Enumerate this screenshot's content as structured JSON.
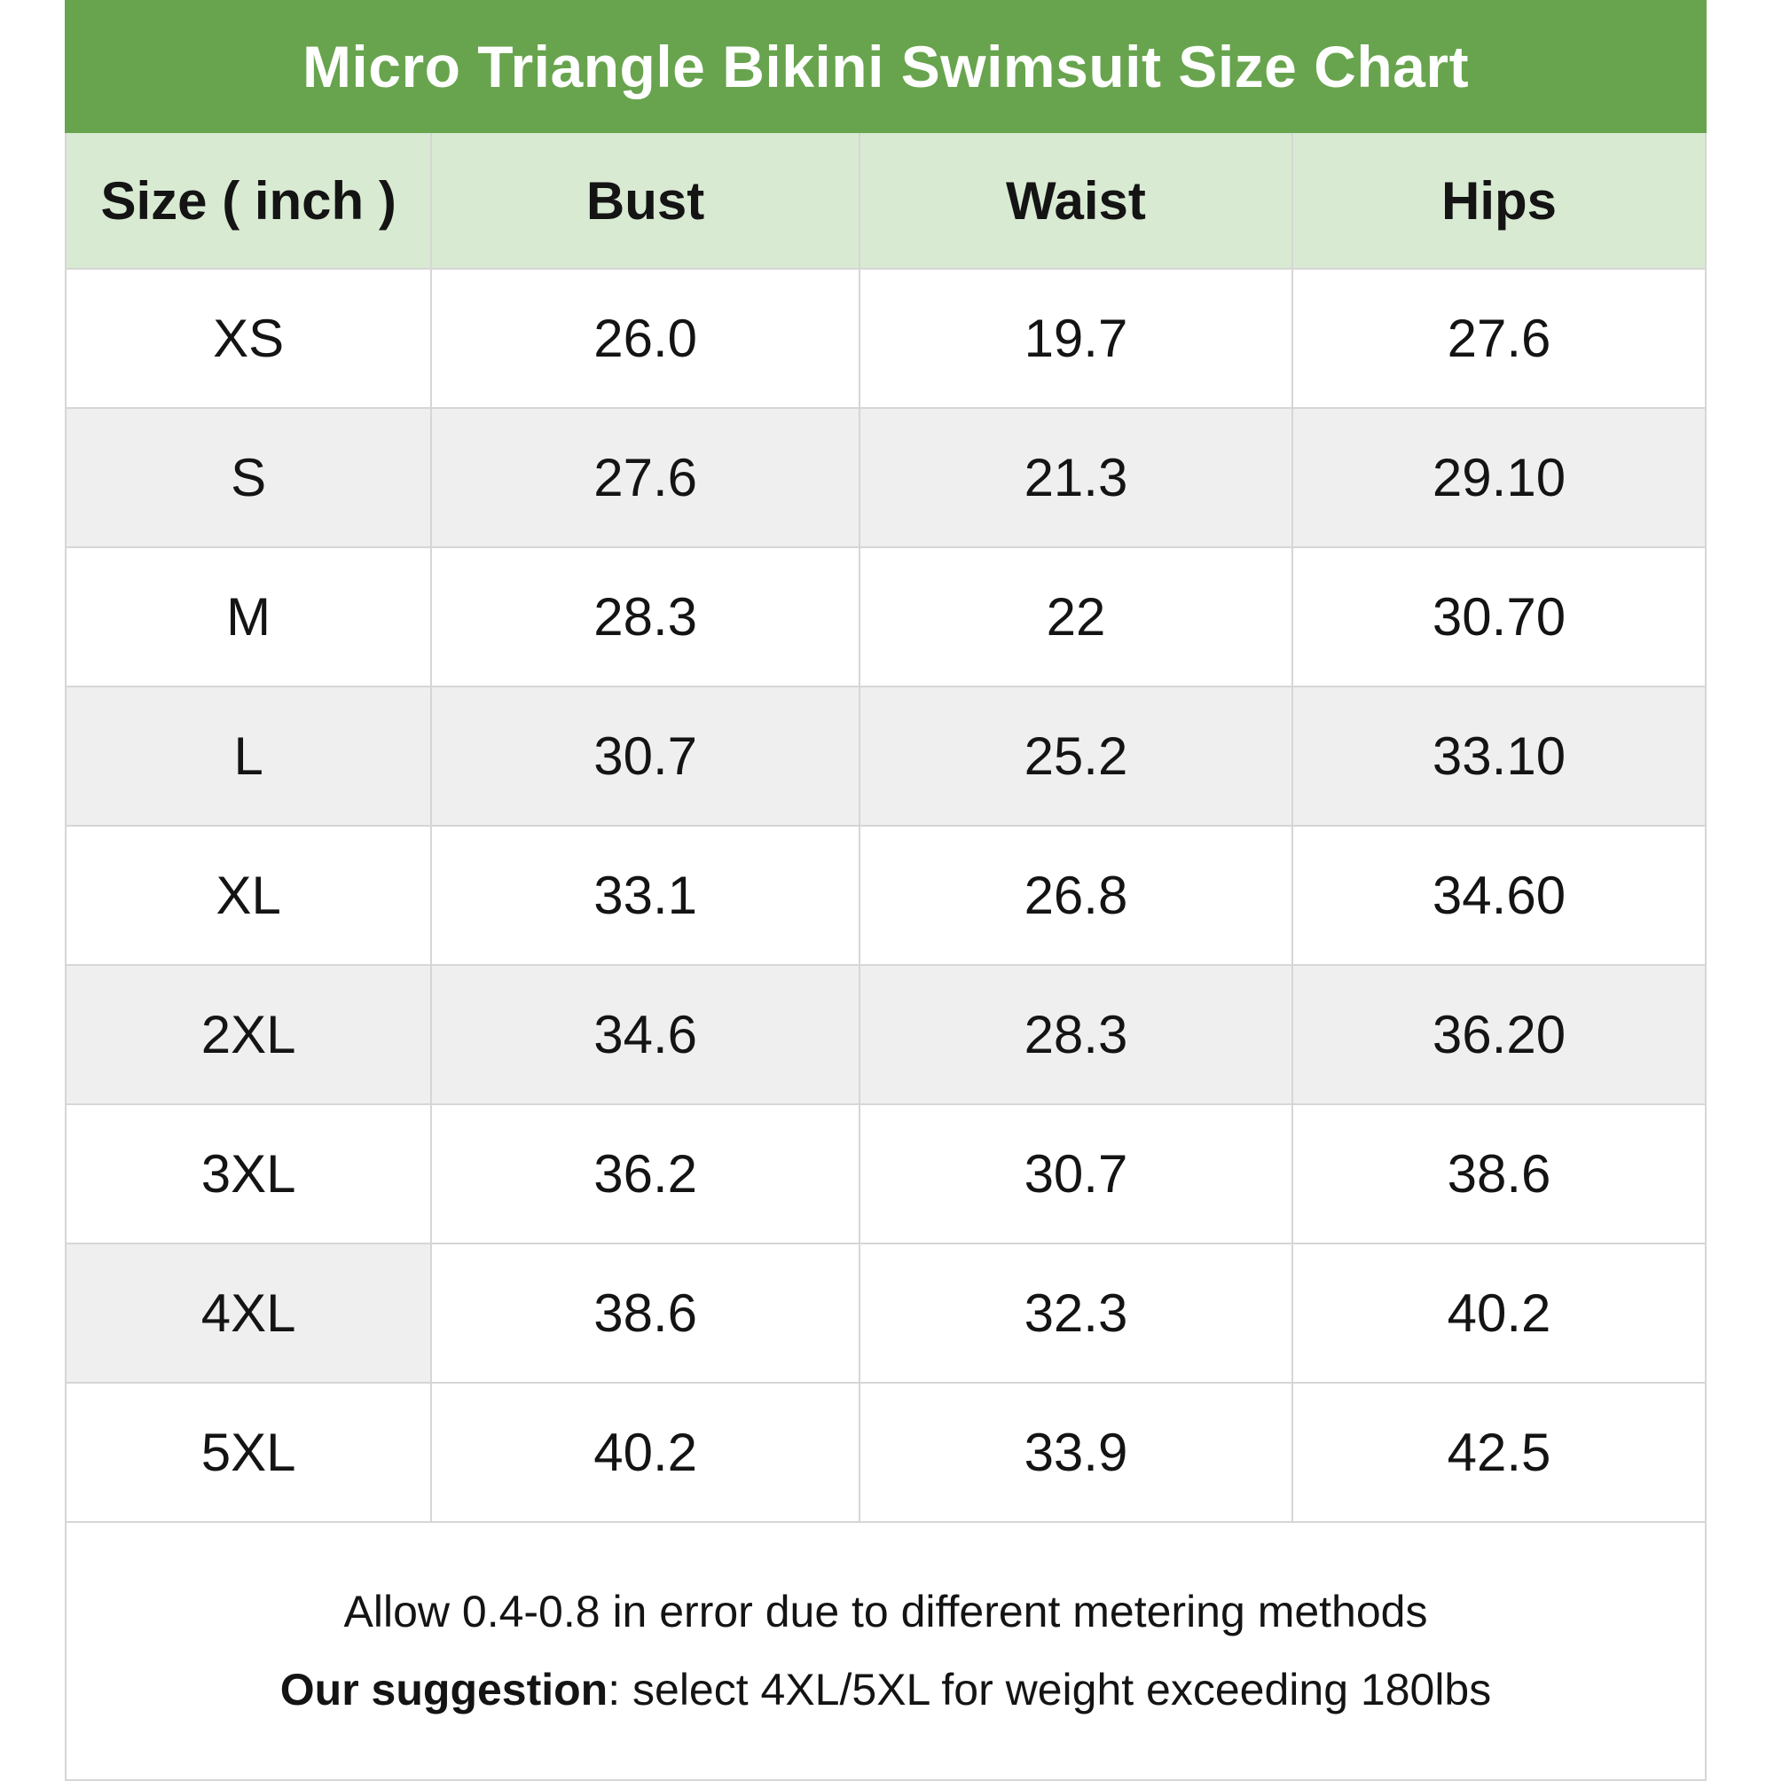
{
  "chart_data": {
    "type": "table",
    "title": "Micro Triangle Bikini Swimsuit Size Chart",
    "columns": [
      "Size ( inch )",
      "Bust",
      "Waist",
      "Hips"
    ],
    "rows": [
      [
        "XS",
        "26.0",
        "19.7",
        "27.6"
      ],
      [
        "S",
        "27.6",
        "21.3",
        "29.10"
      ],
      [
        "M",
        "28.3",
        "22",
        "30.70"
      ],
      [
        "L",
        "30.7",
        "25.2",
        "33.10"
      ],
      [
        "XL",
        "33.1",
        "26.8",
        "34.60"
      ],
      [
        "2XL",
        "34.6",
        "28.3",
        "36.20"
      ],
      [
        "3XL",
        "36.2",
        "30.7",
        "38.6"
      ],
      [
        "4XL",
        "38.6",
        "32.3",
        "40.2"
      ],
      [
        "5XL",
        "40.2",
        "33.9",
        "42.5"
      ]
    ]
  },
  "footer": {
    "line1": "Allow 0.4-0.8 in error due to different metering methods",
    "line2_bold": "Our suggestion",
    "line2_rest": ": select 4XL/5XL for weight exceeding 180lbs"
  },
  "colors": {
    "header_bg": "#68a44e",
    "header_text": "#ffffff",
    "subheader_bg": "#d9ead3",
    "row_bg": "#ffffff",
    "row_alt_bg": "#efefef",
    "border": "#d6d6d6",
    "text": "#141414"
  }
}
